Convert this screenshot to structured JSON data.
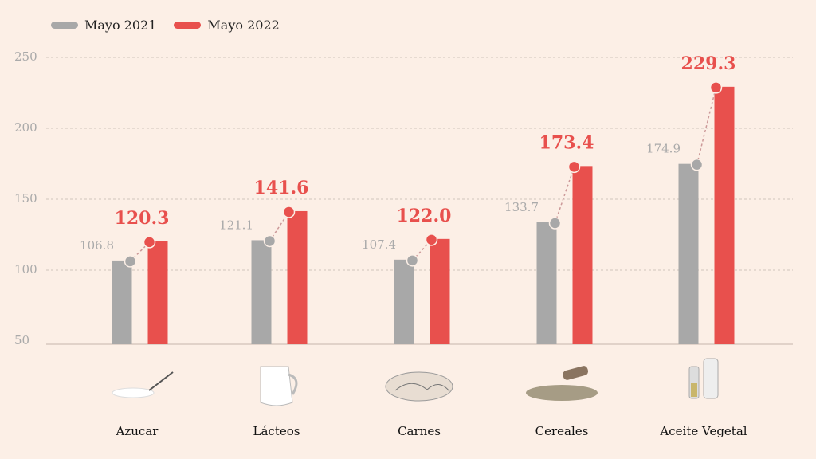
{
  "chart_data": {
    "type": "bar",
    "categories": [
      "Azucar",
      "Lácteos",
      "Carnes",
      "Cereales",
      "Aceite Vegetal"
    ],
    "series": [
      {
        "name": "Mayo 2021",
        "values": [
          106.8,
          121.1,
          107.4,
          133.7,
          174.9
        ],
        "color": "#a8a8a8"
      },
      {
        "name": "Mayo 2022",
        "values": [
          120.3,
          141.6,
          122.0,
          173.4,
          229.3
        ],
        "color": "#e8504d"
      }
    ],
    "y_ticks": [
      "50",
      "100",
      "150",
      "200",
      "250"
    ],
    "ylim": [
      50,
      250
    ],
    "grid": true,
    "legend": "top-left",
    "category_icons": [
      "sugar-spoon-icon",
      "milk-jug-icon",
      "chicken-icon",
      "grain-pile-icon",
      "oil-bottles-icon"
    ]
  }
}
